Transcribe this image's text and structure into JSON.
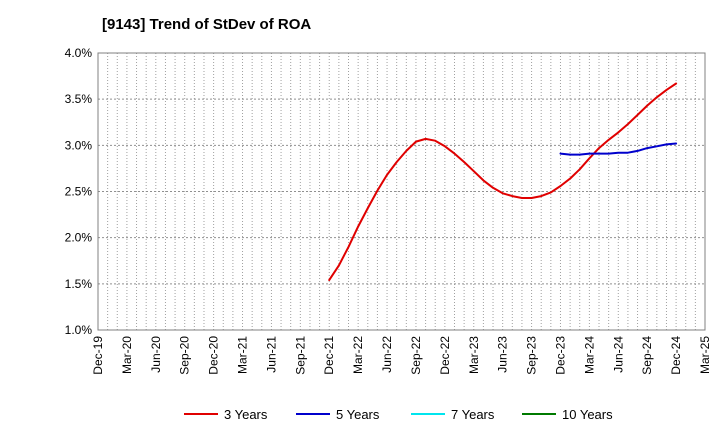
{
  "title": "[9143]  Trend of StDev of ROA",
  "chart_data": {
    "type": "line",
    "title": "[9143]  Trend of StDev of ROA",
    "xlabel": "",
    "ylabel": "",
    "x_tick_labels": [
      "Dec-19",
      "Mar-20",
      "Jun-20",
      "Sep-20",
      "Dec-20",
      "Mar-21",
      "Jun-21",
      "Sep-21",
      "Dec-21",
      "Mar-22",
      "Jun-22",
      "Sep-22",
      "Dec-22",
      "Mar-23",
      "Jun-23",
      "Sep-23",
      "Dec-23",
      "Mar-24",
      "Jun-24",
      "Sep-24",
      "Dec-24",
      "Mar-25"
    ],
    "y_tick_labels": [
      "1.0%",
      "1.5%",
      "2.0%",
      "2.5%",
      "3.0%",
      "3.5%",
      "4.0%"
    ],
    "ylim": [
      1.0,
      4.0
    ],
    "grid": true,
    "legend_position": "bottom",
    "series": [
      {
        "name": "3 Years",
        "color": "#e00000",
        "points": [
          [
            "Dec-21",
            1.54
          ],
          [
            "Jan-22",
            1.7
          ],
          [
            "Feb-22",
            1.9
          ],
          [
            "Mar-22",
            2.12
          ],
          [
            "Apr-22",
            2.32
          ],
          [
            "May-22",
            2.51
          ],
          [
            "Jun-22",
            2.68
          ],
          [
            "Jul-22",
            2.82
          ],
          [
            "Aug-22",
            2.94
          ],
          [
            "Sep-22",
            3.04
          ],
          [
            "Oct-22",
            3.07
          ],
          [
            "Nov-22",
            3.05
          ],
          [
            "Dec-22",
            2.99
          ],
          [
            "Jan-23",
            2.91
          ],
          [
            "Feb-23",
            2.82
          ],
          [
            "Mar-23",
            2.72
          ],
          [
            "Apr-23",
            2.62
          ],
          [
            "May-23",
            2.54
          ],
          [
            "Jun-23",
            2.48
          ],
          [
            "Jul-23",
            2.45
          ],
          [
            "Aug-23",
            2.43
          ],
          [
            "Sep-23",
            2.43
          ],
          [
            "Oct-23",
            2.45
          ],
          [
            "Nov-23",
            2.49
          ],
          [
            "Dec-23",
            2.56
          ],
          [
            "Jan-24",
            2.64
          ],
          [
            "Feb-24",
            2.74
          ],
          [
            "Mar-24",
            2.86
          ],
          [
            "Apr-24",
            2.97
          ],
          [
            "May-24",
            3.06
          ],
          [
            "Jun-24",
            3.14
          ],
          [
            "Jul-24",
            3.23
          ],
          [
            "Aug-24",
            3.33
          ],
          [
            "Sep-24",
            3.43
          ],
          [
            "Oct-24",
            3.52
          ],
          [
            "Nov-24",
            3.6
          ],
          [
            "Dec-24",
            3.67
          ]
        ]
      },
      {
        "name": "5 Years",
        "color": "#0000cc",
        "points": [
          [
            "Dec-23",
            2.91
          ],
          [
            "Jan-24",
            2.9
          ],
          [
            "Feb-24",
            2.9
          ],
          [
            "Mar-24",
            2.91
          ],
          [
            "Apr-24",
            2.91
          ],
          [
            "May-24",
            2.91
          ],
          [
            "Jun-24",
            2.92
          ],
          [
            "Jul-24",
            2.92
          ],
          [
            "Aug-24",
            2.94
          ],
          [
            "Sep-24",
            2.97
          ],
          [
            "Oct-24",
            2.99
          ],
          [
            "Nov-24",
            3.01
          ],
          [
            "Dec-24",
            3.02
          ]
        ]
      },
      {
        "name": "7 Years",
        "color": "#00e5ee",
        "points": []
      },
      {
        "name": "10 Years",
        "color": "#007a00",
        "points": []
      }
    ]
  }
}
